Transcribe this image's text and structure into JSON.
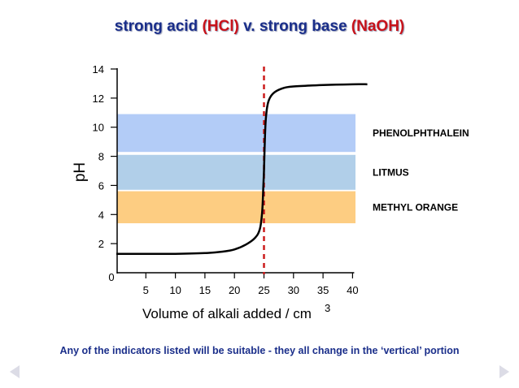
{
  "title": {
    "part1": "strong acid ",
    "acid": "(HCl)",
    "part2": " v. strong base ",
    "base": "(NaOH)"
  },
  "footer": "Any of the indicators listed will be suitable - they all change in the ‘vertical’ portion",
  "chart_data": {
    "type": "line",
    "title": "strong acid (HCl) v. strong base (NaOH)",
    "xlabel": "Volume of alkali added / cm",
    "xlabel_superscript": "3",
    "ylabel": "pH",
    "xlim": [
      0,
      43
    ],
    "ylim": [
      0,
      14
    ],
    "x_ticks": [
      0,
      5,
      10,
      15,
      20,
      25,
      30,
      35,
      40
    ],
    "x_tick_labels": [
      "0",
      "5",
      "10",
      "15",
      "20",
      "25",
      "30",
      "35",
      "40"
    ],
    "y_ticks": [
      2,
      4,
      6,
      8,
      10,
      12,
      14
    ],
    "y_tick_labels": [
      "2",
      "4",
      "6",
      "8",
      "10",
      "12",
      "14"
    ],
    "grid": false,
    "equivalence_line": {
      "x": 25,
      "color": "#cc1c1c",
      "style": "dashed"
    },
    "indicator_ranges": [
      {
        "label": "PHENOLPHTHALEIN",
        "ymin": 8.3,
        "ymax": 10.9,
        "color": "#b3ccf7"
      },
      {
        "label": "LITMUS",
        "ymin": 5.7,
        "ymax": 8.1,
        "color": "#b1cfe9"
      },
      {
        "label": "METHYL ORANGE",
        "ymin": 3.4,
        "ymax": 5.6,
        "color": "#fdcd82"
      }
    ],
    "series": [
      {
        "color": "#000000",
        "points": [
          [
            0,
            1.3
          ],
          [
            5,
            1.3
          ],
          [
            10,
            1.3
          ],
          [
            15,
            1.35
          ],
          [
            18,
            1.45
          ],
          [
            20,
            1.6
          ],
          [
            22,
            1.95
          ],
          [
            23.5,
            2.4
          ],
          [
            24.3,
            3.0
          ],
          [
            24.7,
            4.2
          ],
          [
            24.9,
            6.0
          ],
          [
            25.0,
            7.0
          ],
          [
            25.1,
            8.5
          ],
          [
            25.3,
            10.5
          ],
          [
            25.7,
            11.7
          ],
          [
            26.5,
            12.3
          ],
          [
            28,
            12.65
          ],
          [
            30,
            12.8
          ],
          [
            35,
            12.9
          ],
          [
            40,
            12.95
          ],
          [
            42.5,
            12.95
          ]
        ]
      }
    ]
  }
}
